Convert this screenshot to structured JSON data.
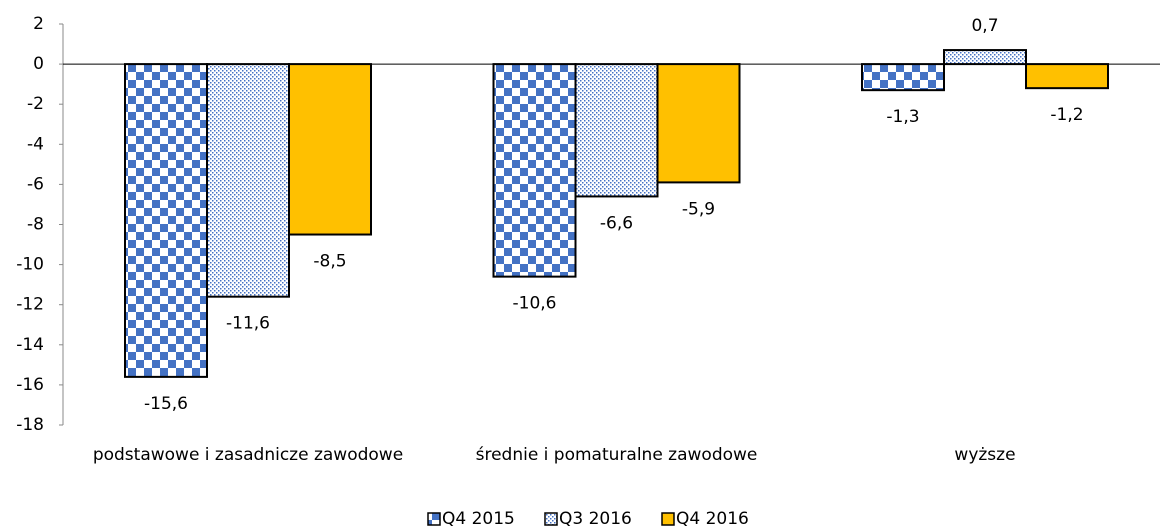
{
  "chart_data": {
    "type": "bar",
    "categories": [
      "podstawowe i zasadnicze zawodowe",
      "średnie i pomaturalne zawodowe",
      "wyższe"
    ],
    "series": [
      {
        "name": "Q4 2015",
        "color": "#4472c4",
        "pattern": "checker",
        "values": [
          -15.6,
          -10.6,
          -1.3
        ],
        "value_labels": [
          "-15,6",
          "-10,6",
          "-1,3"
        ]
      },
      {
        "name": "Q3 2016",
        "color": "#4472c4",
        "pattern": "dots",
        "values": [
          -11.6,
          -6.6,
          0.7
        ],
        "value_labels": [
          "-11,6",
          "-6,6",
          "0,7"
        ]
      },
      {
        "name": "Q4 2016",
        "color": "#ffc000",
        "pattern": "solid",
        "values": [
          -8.5,
          -5.9,
          -1.2
        ],
        "value_labels": [
          "-8,5",
          "-5,9",
          "-1,2"
        ]
      }
    ],
    "ylim": [
      -18,
      2
    ],
    "yticks": [
      2,
      0,
      -2,
      -4,
      -6,
      -8,
      -10,
      -12,
      -14,
      -16,
      -18
    ],
    "grid": false,
    "legend": "bottom"
  }
}
